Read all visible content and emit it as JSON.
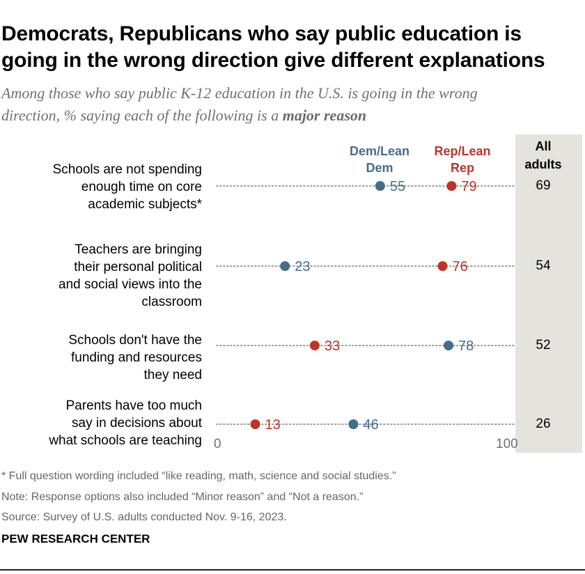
{
  "title_line1": "Democrats, Republicans who say public education is",
  "title_line2": "going in the wrong direction give different explanations",
  "subtitle_line1": "Among those who say public K-12 education in the U.S. is going in the wrong",
  "subtitle_line2_pre": "direction, % saying each of the following is a ",
  "subtitle_line2_bold": "major reason",
  "legend": {
    "dem_line1": "Dem/Lean",
    "dem_line2": "Dem",
    "rep_line1": "Rep/Lean",
    "rep_line2": "Rep",
    "all_line1": "All",
    "all_line2": "adults"
  },
  "colors": {
    "dem": "#436f8a",
    "rep": "#bf3427",
    "dots": "#9a9a9a"
  },
  "chart_data": {
    "type": "dot",
    "xlim": [
      0,
      100
    ],
    "tick_labels": [
      "0",
      "100"
    ],
    "categories": [
      [
        "Schools are not spending",
        "enough time on core",
        "academic subjects*"
      ],
      [
        "Teachers are bringing",
        "their personal political",
        "and social views into the",
        "classroom"
      ],
      [
        "Schools don't have the",
        "funding and resources",
        "they need"
      ],
      [
        "Parents have too much",
        "say in decisions about",
        "what schools are teaching"
      ]
    ],
    "series": [
      {
        "name": "Dem/Lean Dem",
        "values": [
          55,
          23,
          78,
          46
        ]
      },
      {
        "name": "Rep/Lean Rep",
        "values": [
          79,
          76,
          33,
          13
        ]
      }
    ],
    "all_adults": {
      "name": "All adults",
      "values": [
        "69",
        "54",
        "52",
        "26"
      ]
    }
  },
  "footer": {
    "note1": "* Full question wording included “like reading, math, science and social studies.”",
    "note2": "Note: Response options also included “Minor reason” and “Not a reason.”",
    "source": "Source: Survey of U.S. adults conducted Nov. 9-16, 2023.",
    "brand": "PEW RESEARCH CENTER"
  }
}
